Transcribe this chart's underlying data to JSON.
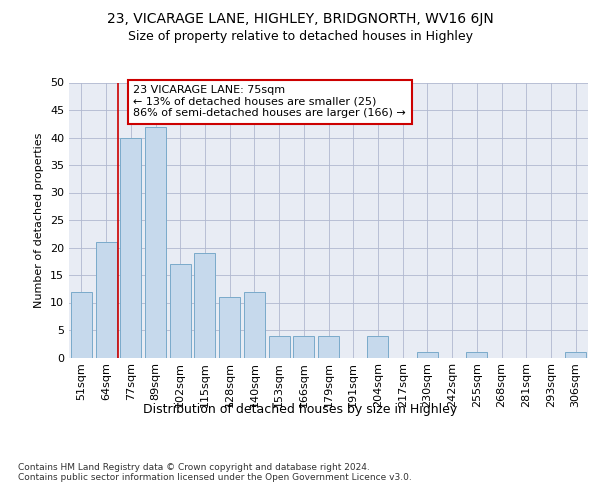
{
  "title1": "23, VICARAGE LANE, HIGHLEY, BRIDGNORTH, WV16 6JN",
  "title2": "Size of property relative to detached houses in Highley",
  "xlabel": "Distribution of detached houses by size in Highley",
  "ylabel": "Number of detached properties",
  "categories": [
    "51sqm",
    "64sqm",
    "77sqm",
    "89sqm",
    "102sqm",
    "115sqm",
    "128sqm",
    "140sqm",
    "153sqm",
    "166sqm",
    "179sqm",
    "191sqm",
    "204sqm",
    "217sqm",
    "230sqm",
    "242sqm",
    "255sqm",
    "268sqm",
    "281sqm",
    "293sqm",
    "306sqm"
  ],
  "values": [
    12,
    21,
    40,
    42,
    17,
    19,
    11,
    12,
    4,
    4,
    4,
    0,
    4,
    0,
    1,
    0,
    1,
    0,
    0,
    0,
    1
  ],
  "bar_color": "#c6d9ec",
  "bar_edge_color": "#7aaaca",
  "vline_color": "#cc0000",
  "vline_x_index": 2,
  "annotation_text": "23 VICARAGE LANE: 75sqm\n← 13% of detached houses are smaller (25)\n86% of semi-detached houses are larger (166) →",
  "annotation_box_color": "white",
  "annotation_box_edge_color": "#cc0000",
  "ylim": [
    0,
    50
  ],
  "yticks": [
    0,
    5,
    10,
    15,
    20,
    25,
    30,
    35,
    40,
    45,
    50
  ],
  "grid_color": "#b0b8d0",
  "background_color": "#e8ecf4",
  "footnote": "Contains HM Land Registry data © Crown copyright and database right 2024.\nContains public sector information licensed under the Open Government Licence v3.0.",
  "title1_fontsize": 10,
  "title2_fontsize": 9,
  "xlabel_fontsize": 9,
  "ylabel_fontsize": 8,
  "tick_fontsize": 8,
  "annotation_fontsize": 8,
  "footnote_fontsize": 6.5
}
